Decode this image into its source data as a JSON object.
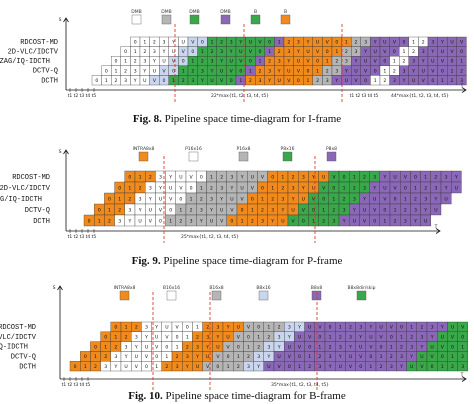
{
  "colors": {
    "white": "#ffffff",
    "blue": "#c9d6ee",
    "grey": "#b5b5b5",
    "green": "#3aa74a",
    "orange": "#f08a1c",
    "purple": "#8b67b7",
    "dashed": "#e03a2f"
  },
  "figures": [
    {
      "caption_num": "Fig. 8.",
      "caption_text": " Pipeline space time-diagram for I-frame",
      "rows": [
        "RDCOST-MD",
        "2D-VLC/IDCTV",
        "ZIGZAG/IQ-IDCTH",
        "DCTV-Q",
        "DCTH"
      ],
      "legend": [
        "DMB",
        "DMB",
        "DMB",
        "DMB",
        "B",
        "B"
      ],
      "legend_colors": [
        "white",
        "grey",
        "green",
        "purple",
        "green",
        "orange"
      ],
      "axis_s": "S",
      "axis_t": "T",
      "ticks": [
        "t1",
        "t2",
        "t3",
        "t4",
        "t5"
      ],
      "ticks2": [
        "t1",
        "t2",
        "t3",
        "t4",
        "t5"
      ],
      "formula": "22*max{t1, t2, t3, t4, t5}",
      "formula2": "44*max{t1, t2, t3, t4, t5}"
    },
    {
      "caption_num": "Fig. 9.",
      "caption_text": " Pipeline space time-diagram for P-frame",
      "rows": [
        "RDCOST-MD",
        "2D-VLC/IDCTV",
        "ZIGZAG/IQ-IDCTH",
        "DCTV-Q",
        "DCTH"
      ],
      "legend": [
        "INTRA8x8",
        "P16x16",
        "P16x8",
        "P8x16",
        "P8x8"
      ],
      "legend_colors": [
        "orange",
        "white",
        "grey",
        "green",
        "purple"
      ],
      "axis_s": "S",
      "axis_t": "T",
      "ticks": [
        "t1",
        "t2",
        "t3",
        "t4",
        "t5"
      ],
      "formula": "25*max{t1, t2, t3, t4, t5}"
    },
    {
      "caption_num": "Fig. 10.",
      "caption_text": " Pipeline space time-diagram for B-frame",
      "rows": [
        "RDCOST-MD",
        "2D-VLC/IDCTV",
        "ZIGZAG/IQ-IDCTH",
        "DCTV-Q",
        "DCTH"
      ],
      "legend": [
        "INTRA8x8",
        "B16x16",
        "B16x8",
        "B8x16",
        "B8x8",
        "B8x8dir/skip"
      ],
      "legend_colors": [
        "orange",
        "white",
        "grey",
        "blue",
        "purple",
        "green"
      ],
      "axis_s": "S",
      "axis_t": "T",
      "ticks": [
        "t1",
        "t2",
        "t3",
        "t4",
        "t5"
      ],
      "formula": "35*max{t1, t2, t3, t4, t5}"
    }
  ]
}
